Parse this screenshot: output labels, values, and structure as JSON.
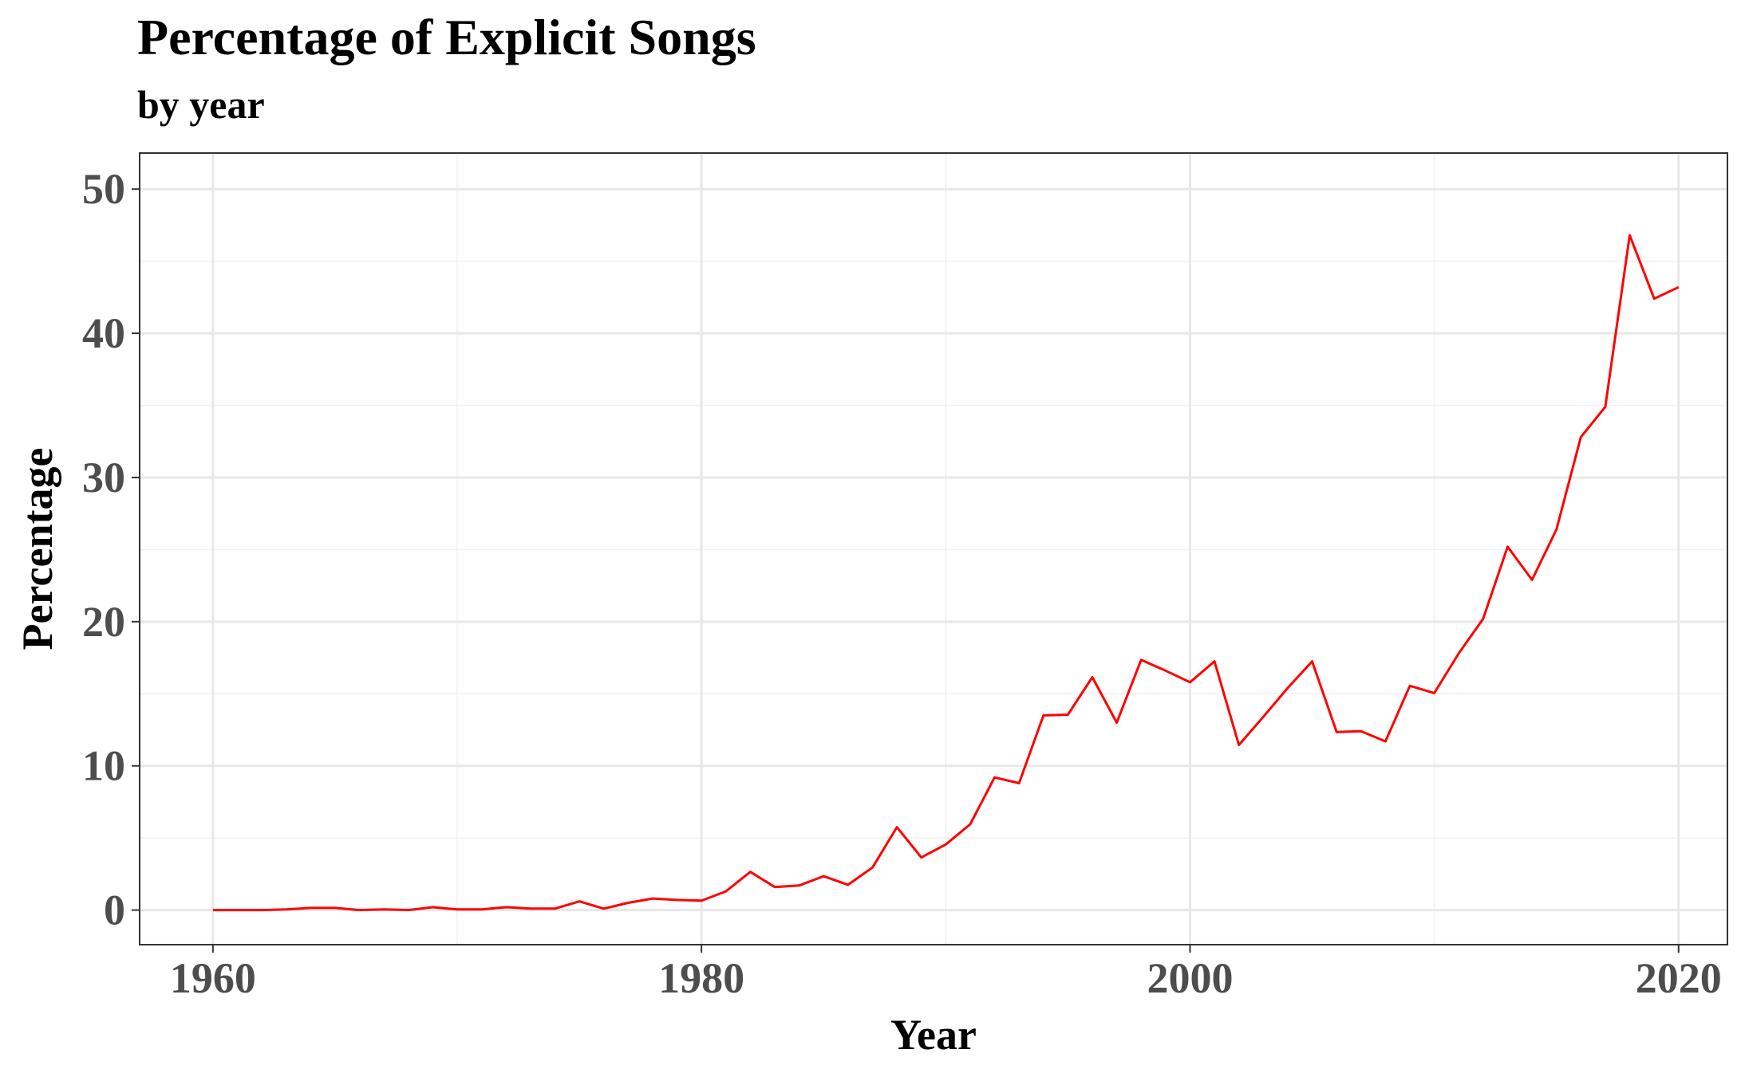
{
  "chart_data": {
    "type": "line",
    "title": "Percentage of Explicit Songs",
    "subtitle": "by year",
    "xlabel": "Year",
    "ylabel": "Percentage",
    "xlim": [
      1957,
      2022
    ],
    "ylim": [
      -2.4,
      52.5
    ],
    "xticks": [
      1960,
      1980,
      2000,
      2020
    ],
    "yticks": [
      0,
      10,
      20,
      30,
      40,
      50
    ],
    "grid": true,
    "line_color": "#ff0000",
    "series": [
      {
        "x": [
          1960,
          1961,
          1962,
          1963,
          1964,
          1965,
          1966,
          1967,
          1968,
          1969,
          1970,
          1971,
          1972,
          1973,
          1974,
          1975,
          1976,
          1977,
          1978,
          1979,
          1980,
          1981,
          1982,
          1983,
          1984,
          1985,
          1986,
          1987,
          1988,
          1989,
          1990,
          1991,
          1992,
          1993,
          1994,
          1995,
          1996,
          1997,
          1998,
          1999,
          2000,
          2001,
          2002,
          2003,
          2004,
          2005,
          2006,
          2007,
          2008,
          2009,
          2010,
          2011,
          2012,
          2013,
          2014,
          2015,
          2016,
          2017,
          2018,
          2019,
          2020
        ],
        "values": [
          0.0,
          0.0,
          0.0,
          0.05,
          0.15,
          0.15,
          0.0,
          0.05,
          0.0,
          0.2,
          0.05,
          0.05,
          0.2,
          0.1,
          0.1,
          0.6,
          0.1,
          0.5,
          0.8,
          0.7,
          0.65,
          1.3,
          2.65,
          1.6,
          1.7,
          2.35,
          1.75,
          2.95,
          5.75,
          3.65,
          4.55,
          5.95,
          9.2,
          8.8,
          13.5,
          13.55,
          16.15,
          13.0,
          17.35,
          16.6,
          15.8,
          17.25,
          11.45,
          13.4,
          15.4,
          17.25,
          12.35,
          12.4,
          11.7,
          15.55,
          15.05,
          17.8,
          20.2,
          25.2,
          22.9,
          26.4,
          32.8,
          34.9,
          46.8,
          42.4,
          43.2
        ]
      }
    ]
  }
}
